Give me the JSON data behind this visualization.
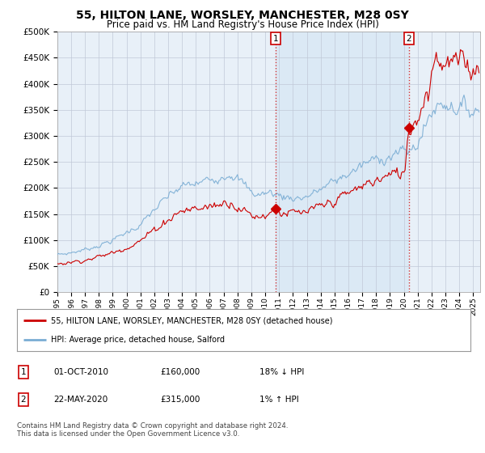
{
  "title": "55, HILTON LANE, WORSLEY, MANCHESTER, M28 0SY",
  "subtitle": "Price paid vs. HM Land Registry's House Price Index (HPI)",
  "background_color": "#ffffff",
  "plot_bg_color": "#e8f0f8",
  "yticks": [
    0,
    50000,
    100000,
    150000,
    200000,
    250000,
    300000,
    350000,
    400000,
    450000,
    500000
  ],
  "ytick_labels": [
    "£0",
    "£50K",
    "£100K",
    "£150K",
    "£200K",
    "£250K",
    "£300K",
    "£350K",
    "£400K",
    "£450K",
    "£500K"
  ],
  "xlim_start": 1995.0,
  "xlim_end": 2025.5,
  "ylim_min": 0,
  "ylim_max": 500000,
  "transaction1_x": 2010.75,
  "transaction1_y": 160000,
  "transaction2_x": 2020.37,
  "transaction2_y": 315000,
  "line_house_color": "#cc0000",
  "line_hpi_color": "#7aadd4",
  "highlight_color": "#d8e8f5",
  "legend_line1": "55, HILTON LANE, WORSLEY, MANCHESTER, M28 0SY (detached house)",
  "legend_line2": "HPI: Average price, detached house, Salford",
  "table_rows": [
    [
      "1",
      "01-OCT-2010",
      "£160,000",
      "18% ↓ HPI"
    ],
    [
      "2",
      "22-MAY-2020",
      "£315,000",
      "1% ↑ HPI"
    ]
  ],
  "footnote": "Contains HM Land Registry data © Crown copyright and database right 2024.\nThis data is licensed under the Open Government Licence v3.0.",
  "xtick_years": [
    1995,
    1996,
    1997,
    1998,
    1999,
    2000,
    2001,
    2002,
    2003,
    2004,
    2005,
    2006,
    2007,
    2008,
    2009,
    2010,
    2011,
    2012,
    2013,
    2014,
    2015,
    2016,
    2017,
    2018,
    2019,
    2020,
    2021,
    2022,
    2023,
    2024,
    2025
  ]
}
